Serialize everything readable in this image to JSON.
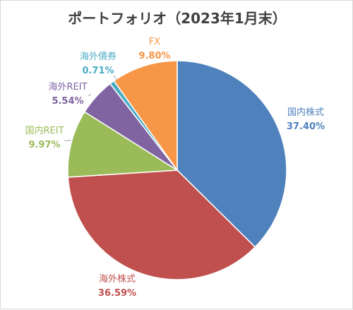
{
  "chart_data": {
    "type": "pie",
    "title": "ポートフォリオ（2023年1月末）",
    "slices": [
      {
        "label": "国内株式",
        "value": 37.4,
        "value_text": "37.40%",
        "color": "#4f81bd",
        "text_color": "#4f81bd"
      },
      {
        "label": "海外株式",
        "value": 36.59,
        "value_text": "36.59%",
        "color": "#c0504d",
        "text_color": "#c0504d"
      },
      {
        "label": "国内REIT",
        "value": 9.97,
        "value_text": "9.97%",
        "color": "#9bbb59",
        "text_color": "#9bbb59"
      },
      {
        "label": "海外REIT",
        "value": 5.54,
        "value_text": "5.54%",
        "color": "#8064a2",
        "text_color": "#8064a2"
      },
      {
        "label": "海外債券",
        "value": 0.71,
        "value_text": "0.71%",
        "color": "#4bacc6",
        "text_color": "#4bacc6"
      },
      {
        "label": "FX",
        "value": 9.8,
        "value_text": "9.80%",
        "color": "#f79646",
        "text_color": "#f79646"
      }
    ],
    "start": "12 o'clock",
    "direction": "clockwise",
    "legend": "none",
    "data_labels": "outside with category name and percent"
  }
}
